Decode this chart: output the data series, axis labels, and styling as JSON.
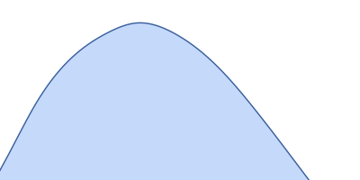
{
  "fill_color": "#c5d9fb",
  "line_color": "#3a5f9a",
  "line_width": 1.0,
  "background_color": "#ffffff",
  "figsize": [
    4.0,
    2.0
  ],
  "dpi": 100,
  "control_x": [
    -0.12,
    -0.05,
    0.02,
    0.1,
    0.2,
    0.3,
    0.38,
    0.48,
    0.6,
    0.72,
    0.85,
    0.95,
    1.05
  ],
  "control_y": [
    -0.3,
    0.05,
    0.3,
    0.58,
    0.82,
    0.95,
    1.0,
    0.95,
    0.78,
    0.52,
    0.2,
    -0.05,
    -0.3
  ],
  "xlim": [
    0.0,
    1.0
  ],
  "ylim": [
    0.18,
    1.12
  ]
}
